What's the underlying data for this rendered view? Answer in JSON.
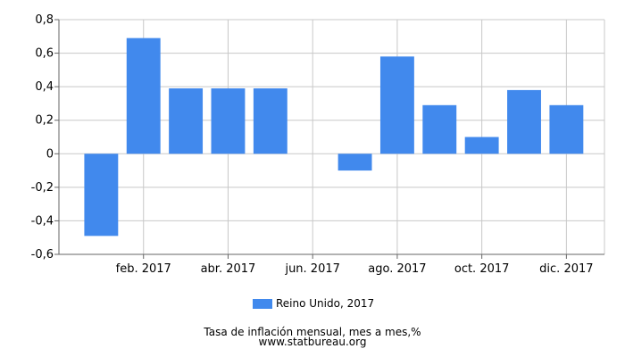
{
  "chart_data": {
    "type": "bar",
    "categories": [
      "ene. 2017",
      "feb. 2017",
      "mar. 2017",
      "abr. 2017",
      "may. 2017",
      "jun. 2017",
      "jul. 2017",
      "ago. 2017",
      "sep. 2017",
      "oct. 2017",
      "nov. 2017",
      "dic. 2017"
    ],
    "x_tick_labels": [
      "feb. 2017",
      "abr. 2017",
      "jun. 2017",
      "ago. 2017",
      "oct. 2017",
      "dic. 2017"
    ],
    "series": [
      {
        "name": "Reino Unido, 2017",
        "values": [
          -0.49,
          0.69,
          0.39,
          0.39,
          0.39,
          0.0,
          -0.1,
          0.58,
          0.29,
          0.1,
          0.38,
          0.29
        ]
      }
    ],
    "ylim": [
      -0.6,
      0.8
    ],
    "y_ticks": [
      "-0,6",
      "-0,4",
      "-0,2",
      "0",
      "0,2",
      "0,4",
      "0,6",
      "0,8"
    ],
    "grid": true,
    "legend_position": "bottom-center",
    "colors": {
      "bar": "#4189ed",
      "grid": "#c8c8c8",
      "axis": "#666666"
    }
  },
  "legend": {
    "label": "Reino Unido, 2017"
  },
  "caption": {
    "line1": "Tasa de inflación mensual, mes a mes,%",
    "line2": "www.statbureau.org"
  }
}
